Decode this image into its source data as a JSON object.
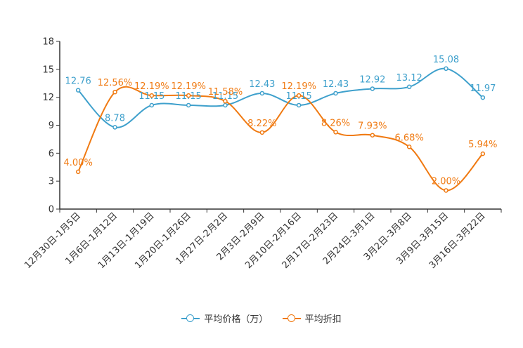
{
  "chart_data": {
    "type": "line",
    "categories": [
      "12月30日-1月5日",
      "1月6日-1月12日",
      "1月13日-1月19日",
      "1月20日-1月26日",
      "1月27日-2月2日",
      "2月3日-2月9日",
      "2月10日-2月16日",
      "2月17日-2月23日",
      "2月24日-3月1日",
      "3月2日-3月8日",
      "3月9日-3月15日",
      "3月16日-3月22日"
    ],
    "ylim": [
      0,
      18
    ],
    "yticks": [
      0,
      3,
      6,
      9,
      12,
      15,
      18
    ],
    "series": [
      {
        "name": "平均价格（万）",
        "color": "#3ea0cc",
        "values": [
          12.76,
          8.78,
          11.15,
          11.15,
          11.15,
          12.43,
          11.15,
          12.43,
          12.92,
          13.12,
          15.08,
          11.97
        ],
        "labels": [
          "12.76",
          "8.78",
          "11.15",
          "11.15",
          "11.15",
          "12.43",
          "11.15",
          "12.43",
          "12.92",
          "13.12",
          "15.08",
          "11.97"
        ]
      },
      {
        "name": "平均折扣",
        "color": "#f07a12",
        "values": [
          4.0,
          12.56,
          12.19,
          12.19,
          11.58,
          8.22,
          12.19,
          8.26,
          7.93,
          6.68,
          2.0,
          5.94
        ],
        "labels": [
          "4.00%",
          "12.56%",
          "12.19%",
          "12.19%",
          "11.58%",
          "8.22%",
          "12.19%",
          "8.26%",
          "7.93%",
          "6.68%",
          "2.00%",
          "5.94%"
        ]
      }
    ]
  }
}
